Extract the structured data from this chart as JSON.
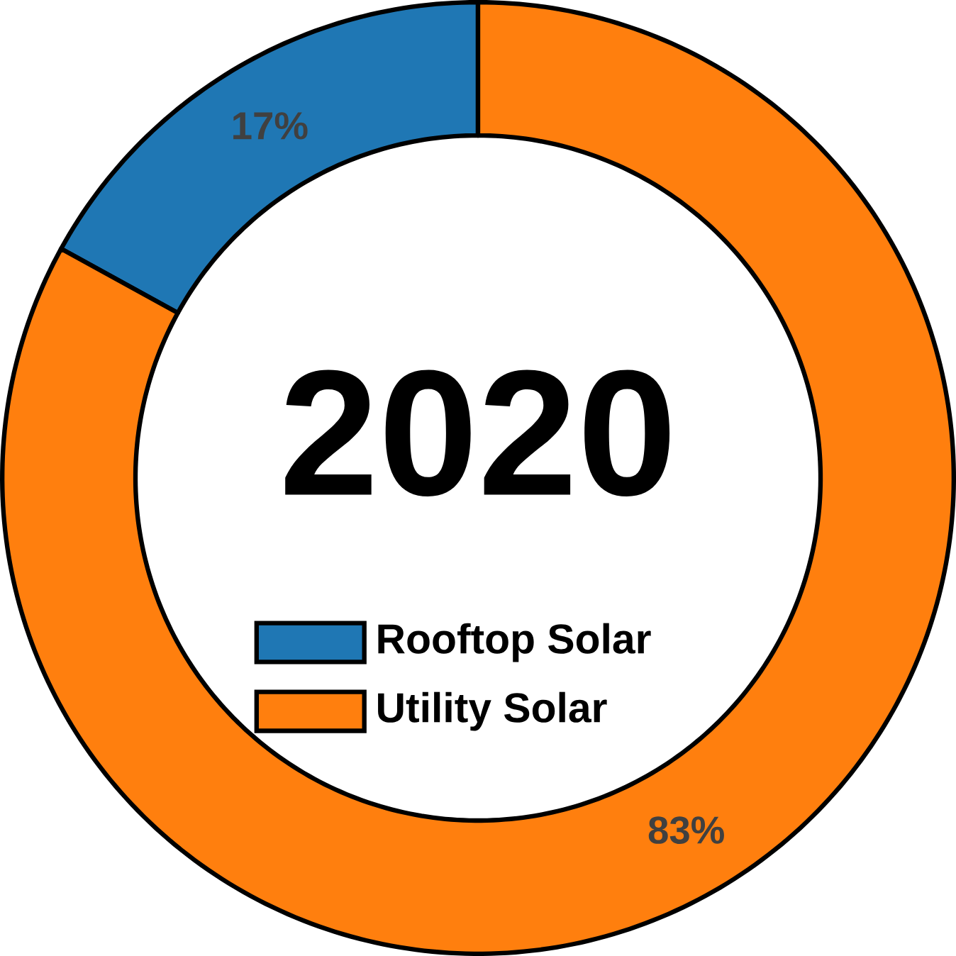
{
  "chart_data": {
    "type": "donut",
    "title": "2020",
    "categories": [
      "Rooftop Solar",
      "Utility Solar"
    ],
    "values": [
      17,
      83
    ],
    "colors": [
      "#1f77b4",
      "#ff7f0e"
    ],
    "value_labels": [
      "17%",
      "83%"
    ],
    "legend": "center"
  }
}
